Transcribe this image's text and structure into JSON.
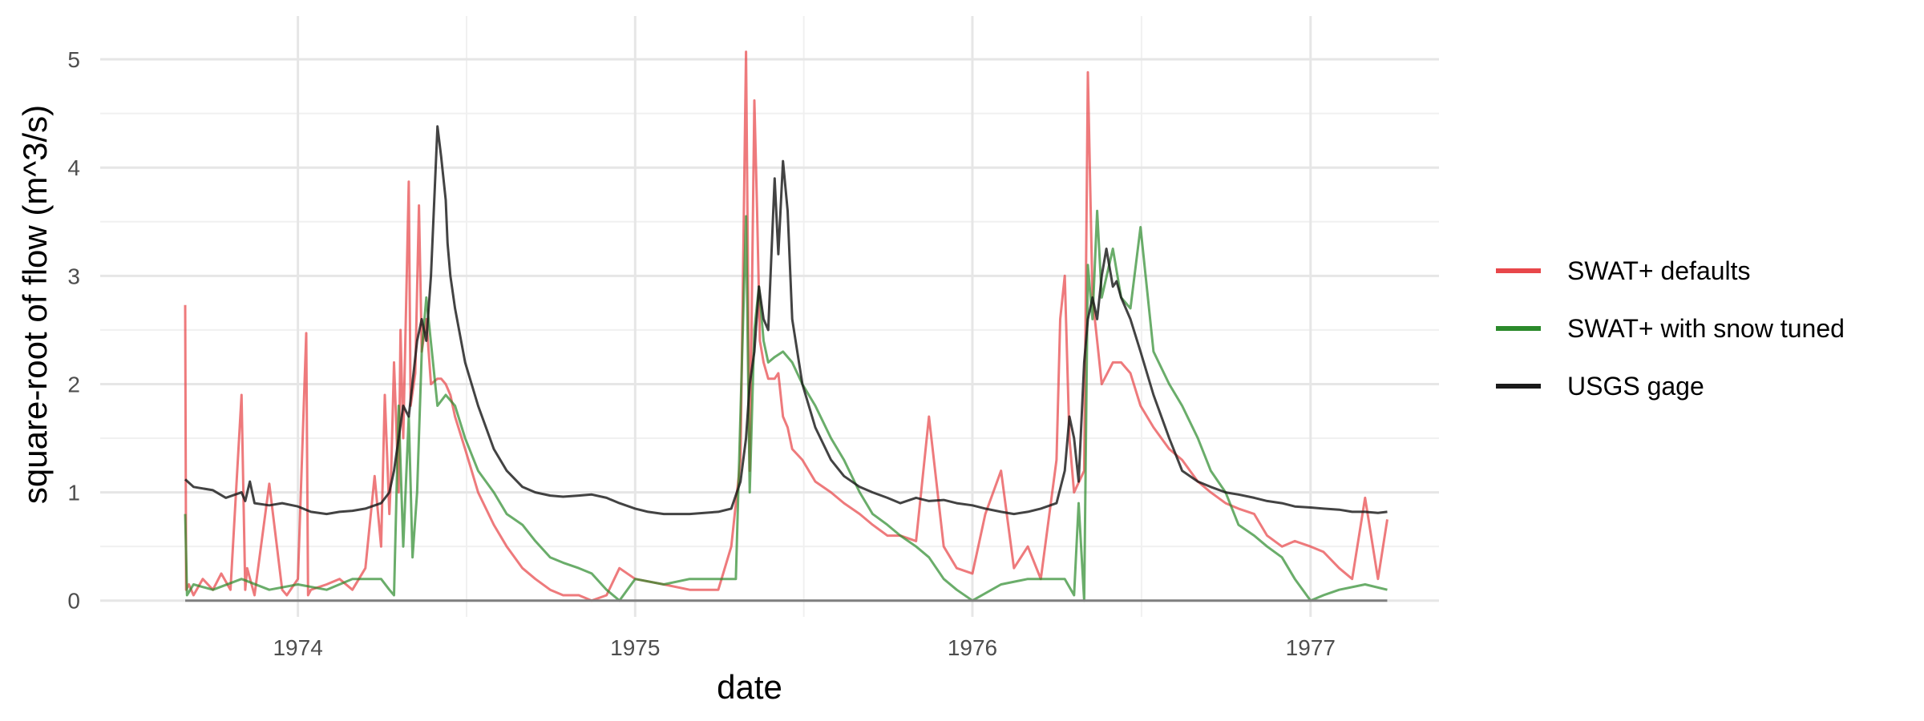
{
  "chart_data": {
    "type": "line",
    "title": "",
    "xlabel": "date",
    "ylabel": "square-root of flow (m^3/s)",
    "xlim": [
      "1973-06-01",
      "1977-05-20"
    ],
    "ylim": [
      -0.15,
      5.4
    ],
    "x_ticks": [
      "1974-01-01",
      "1975-01-01",
      "1976-01-01",
      "1977-01-01"
    ],
    "x_tick_labels": [
      "1974",
      "1975",
      "1976",
      "1977"
    ],
    "y_ticks": [
      0,
      1,
      2,
      3,
      4,
      5
    ],
    "y_tick_labels": [
      "0",
      "1",
      "2",
      "3",
      "4",
      "5"
    ],
    "grid": true,
    "legend_position": "right",
    "series": [
      {
        "name": "SWAT+ defaults",
        "color": "#e8474a",
        "x": [
          "1973-09-01",
          "1973-09-02",
          "1973-09-05",
          "1973-09-10",
          "1973-09-20",
          "1973-10-01",
          "1973-10-10",
          "1973-10-20",
          "1973-11-01",
          "1973-11-05",
          "1973-11-07",
          "1973-11-15",
          "1973-12-01",
          "1973-12-15",
          "1973-12-20",
          "1974-01-01",
          "1974-01-10",
          "1974-01-12",
          "1974-01-15",
          "1974-02-01",
          "1974-02-15",
          "1974-03-01",
          "1974-03-15",
          "1974-03-25",
          "1974-04-01",
          "1974-04-05",
          "1974-04-10",
          "1974-04-12",
          "1974-04-15",
          "1974-04-20",
          "1974-04-22",
          "1974-04-25",
          "1974-05-01",
          "1974-05-03",
          "1974-05-08",
          "1974-05-12",
          "1974-05-15",
          "1974-05-20",
          "1974-05-25",
          "1974-06-01",
          "1974-06-05",
          "1974-06-10",
          "1974-06-15",
          "1974-06-20",
          "1974-07-01",
          "1974-07-15",
          "1974-08-01",
          "1974-08-15",
          "1974-09-01",
          "1974-09-15",
          "1974-10-01",
          "1974-10-15",
          "1974-11-01",
          "1974-11-15",
          "1974-12-01",
          "1974-12-15",
          "1975-01-01",
          "1975-02-01",
          "1975-03-01",
          "1975-04-01",
          "1975-04-15",
          "1975-04-25",
          "1975-05-01",
          "1975-05-05",
          "1975-05-10",
          "1975-05-13",
          "1975-05-16",
          "1975-05-20",
          "1975-05-25",
          "1975-06-01",
          "1975-06-05",
          "1975-06-10",
          "1975-06-15",
          "1975-06-20",
          "1975-07-01",
          "1975-07-15",
          "1975-08-01",
          "1975-08-15",
          "1975-09-01",
          "1975-09-15",
          "1975-10-01",
          "1975-10-15",
          "1975-11-01",
          "1975-11-15",
          "1975-12-01",
          "1975-12-15",
          "1976-01-01",
          "1976-01-15",
          "1976-02-01",
          "1976-02-15",
          "1976-03-01",
          "1976-03-15",
          "1976-04-01",
          "1976-04-05",
          "1976-04-10",
          "1976-04-15",
          "1976-04-20",
          "1976-05-01",
          "1976-05-05",
          "1976-05-10",
          "1976-05-15",
          "1976-05-20",
          "1976-06-01",
          "1976-06-10",
          "1976-06-20",
          "1976-07-01",
          "1976-07-15",
          "1976-08-01",
          "1976-08-15",
          "1976-09-01",
          "1976-09-15",
          "1976-10-01",
          "1976-10-15",
          "1976-11-01",
          "1976-11-15",
          "1976-12-01",
          "1976-12-15",
          "1977-01-01",
          "1977-01-15",
          "1977-02-01",
          "1977-02-15",
          "1977-03-01",
          "1977-03-15",
          "1977-03-25"
        ],
        "values": [
          2.73,
          0.1,
          0.15,
          0.05,
          0.2,
          0.1,
          0.25,
          0.1,
          1.9,
          0.1,
          0.3,
          0.05,
          1.08,
          0.1,
          0.05,
          0.2,
          2.47,
          0.05,
          0.1,
          0.15,
          0.2,
          0.1,
          0.3,
          1.15,
          0.5,
          1.9,
          0.8,
          1.2,
          2.2,
          1.0,
          2.5,
          1.5,
          3.87,
          1.8,
          2.1,
          3.65,
          2.3,
          2.6,
          2.0,
          2.05,
          2.05,
          2.0,
          1.9,
          1.7,
          1.4,
          1.0,
          0.7,
          0.5,
          0.3,
          0.2,
          0.1,
          0.05,
          0.05,
          0.0,
          0.05,
          0.3,
          0.2,
          0.15,
          0.1,
          0.1,
          0.5,
          1.3,
          5.07,
          1.2,
          4.62,
          3.6,
          2.4,
          2.2,
          2.05,
          2.05,
          2.1,
          1.7,
          1.6,
          1.4,
          1.3,
          1.1,
          1.0,
          0.9,
          0.8,
          0.7,
          0.6,
          0.6,
          0.55,
          1.7,
          0.5,
          0.3,
          0.25,
          0.8,
          1.2,
          0.3,
          0.5,
          0.2,
          1.3,
          2.6,
          3.0,
          1.5,
          1.0,
          1.2,
          4.88,
          2.8,
          2.4,
          2.0,
          2.2,
          2.2,
          2.1,
          1.8,
          1.6,
          1.4,
          1.3,
          1.1,
          1.0,
          0.9,
          0.85,
          0.8,
          0.6,
          0.5,
          0.55,
          0.5,
          0.45,
          0.3,
          0.2,
          0.95,
          0.2,
          0.75
        ]
      },
      {
        "name": "SWAT+ with snow tuned",
        "color": "#2b8a2b",
        "x": [
          "1973-09-01",
          "1973-09-03",
          "1973-09-10",
          "1973-10-01",
          "1973-11-01",
          "1973-12-01",
          "1974-01-01",
          "1974-02-01",
          "1974-03-01",
          "1974-04-01",
          "1974-04-10",
          "1974-04-15",
          "1974-04-20",
          "1974-04-25",
          "1974-05-01",
          "1974-05-05",
          "1974-05-10",
          "1974-05-15",
          "1974-05-20",
          "1974-06-01",
          "1974-06-10",
          "1974-06-20",
          "1974-07-01",
          "1974-07-15",
          "1974-08-01",
          "1974-08-15",
          "1974-09-01",
          "1974-09-15",
          "1974-10-01",
          "1974-10-15",
          "1974-11-01",
          "1974-11-15",
          "1974-12-01",
          "1974-12-15",
          "1975-01-01",
          "1975-02-01",
          "1975-03-01",
          "1975-04-01",
          "1975-04-20",
          "1975-05-01",
          "1975-05-05",
          "1975-05-10",
          "1975-05-15",
          "1975-05-20",
          "1975-05-25",
          "1975-06-01",
          "1975-06-10",
          "1975-06-20",
          "1975-07-01",
          "1975-07-15",
          "1975-08-01",
          "1975-08-15",
          "1975-09-01",
          "1975-09-15",
          "1975-10-01",
          "1975-10-15",
          "1975-11-01",
          "1975-11-15",
          "1975-12-01",
          "1975-12-15",
          "1976-01-01",
          "1976-02-01",
          "1976-03-01",
          "1976-04-01",
          "1976-04-10",
          "1976-04-20",
          "1976-04-25",
          "1976-05-01",
          "1976-05-05",
          "1976-05-10",
          "1976-05-15",
          "1976-05-20",
          "1976-06-01",
          "1976-06-10",
          "1976-06-20",
          "1976-07-01",
          "1976-07-15",
          "1976-08-01",
          "1976-08-15",
          "1976-09-01",
          "1976-09-15",
          "1976-10-01",
          "1976-10-15",
          "1976-11-01",
          "1976-11-15",
          "1976-12-01",
          "1976-12-15",
          "1977-01-01",
          "1977-01-15",
          "1977-02-01",
          "1977-03-01",
          "1977-03-25"
        ],
        "values": [
          0.8,
          0.05,
          0.15,
          0.1,
          0.2,
          0.1,
          0.15,
          0.1,
          0.2,
          0.2,
          0.1,
          0.05,
          1.8,
          0.5,
          1.7,
          0.4,
          1.0,
          2.3,
          2.8,
          1.8,
          1.9,
          1.8,
          1.5,
          1.2,
          1.0,
          0.8,
          0.7,
          0.55,
          0.4,
          0.35,
          0.3,
          0.25,
          0.1,
          0.0,
          0.2,
          0.15,
          0.2,
          0.2,
          0.2,
          3.55,
          1.0,
          2.5,
          2.9,
          2.4,
          2.2,
          2.25,
          2.3,
          2.2,
          2.0,
          1.8,
          1.5,
          1.3,
          1.0,
          0.8,
          0.7,
          0.6,
          0.5,
          0.4,
          0.2,
          0.1,
          0.0,
          0.15,
          0.2,
          0.2,
          0.2,
          0.05,
          0.9,
          0.0,
          3.1,
          2.6,
          3.6,
          2.8,
          3.25,
          2.8,
          2.7,
          3.45,
          2.3,
          2.0,
          1.8,
          1.5,
          1.2,
          1.0,
          0.7,
          0.6,
          0.5,
          0.4,
          0.2,
          0.0,
          0.05,
          0.1,
          0.15,
          0.1
        ]
      },
      {
        "name": "USGS gage",
        "color": "#1a1a1a",
        "x": [
          "1973-09-01",
          "1973-09-10",
          "1973-10-01",
          "1973-10-15",
          "1973-11-01",
          "1973-11-05",
          "1973-11-10",
          "1973-11-15",
          "1973-12-01",
          "1973-12-15",
          "1974-01-01",
          "1974-01-15",
          "1974-02-01",
          "1974-02-15",
          "1974-03-01",
          "1974-03-15",
          "1974-04-01",
          "1974-04-10",
          "1974-04-15",
          "1974-04-20",
          "1974-04-25",
          "1974-05-01",
          "1974-05-10",
          "1974-05-15",
          "1974-05-20",
          "1974-05-25",
          "1974-06-01",
          "1974-06-05",
          "1974-06-10",
          "1974-06-12",
          "1974-06-15",
          "1974-06-20",
          "1974-07-01",
          "1974-07-15",
          "1974-08-01",
          "1974-08-15",
          "1974-09-01",
          "1974-09-15",
          "1974-10-01",
          "1974-10-15",
          "1974-11-01",
          "1974-11-15",
          "1974-12-01",
          "1974-12-15",
          "1975-01-01",
          "1975-01-15",
          "1975-02-01",
          "1975-03-01",
          "1975-04-01",
          "1975-04-15",
          "1975-04-25",
          "1975-05-01",
          "1975-05-05",
          "1975-05-10",
          "1975-05-15",
          "1975-05-20",
          "1975-05-25",
          "1975-06-01",
          "1975-06-05",
          "1975-06-10",
          "1975-06-15",
          "1975-06-20",
          "1975-07-01",
          "1975-07-15",
          "1975-08-01",
          "1975-08-15",
          "1975-09-01",
          "1975-09-15",
          "1975-10-01",
          "1975-10-15",
          "1975-11-01",
          "1975-11-15",
          "1975-12-01",
          "1975-12-15",
          "1976-01-01",
          "1976-01-15",
          "1976-02-01",
          "1976-02-15",
          "1976-03-01",
          "1976-03-15",
          "1976-04-01",
          "1976-04-10",
          "1976-04-15",
          "1976-04-20",
          "1976-04-25",
          "1976-05-01",
          "1976-05-05",
          "1976-05-10",
          "1976-05-15",
          "1976-05-20",
          "1976-05-25",
          "1976-06-01",
          "1976-06-05",
          "1976-06-10",
          "1976-06-20",
          "1976-07-01",
          "1976-07-15",
          "1976-08-01",
          "1976-08-15",
          "1976-09-01",
          "1976-09-15",
          "1976-10-01",
          "1976-10-15",
          "1976-11-01",
          "1976-11-15",
          "1976-12-01",
          "1976-12-15",
          "1977-01-01",
          "1977-01-15",
          "1977-02-01",
          "1977-02-15",
          "1977-03-01",
          "1977-03-15",
          "1977-03-25"
        ],
        "values": [
          1.12,
          1.05,
          1.02,
          0.95,
          1.0,
          0.92,
          1.1,
          0.9,
          0.88,
          0.9,
          0.87,
          0.82,
          0.8,
          0.82,
          0.83,
          0.85,
          0.9,
          1.0,
          1.2,
          1.5,
          1.8,
          1.7,
          2.4,
          2.6,
          2.4,
          3.0,
          4.38,
          4.1,
          3.7,
          3.3,
          3.0,
          2.7,
          2.2,
          1.8,
          1.4,
          1.2,
          1.05,
          1.0,
          0.97,
          0.96,
          0.97,
          0.98,
          0.95,
          0.9,
          0.85,
          0.82,
          0.8,
          0.8,
          0.82,
          0.85,
          1.1,
          1.5,
          2.0,
          2.3,
          2.9,
          2.6,
          2.5,
          3.9,
          3.2,
          4.06,
          3.6,
          2.6,
          2.0,
          1.6,
          1.3,
          1.15,
          1.05,
          1.0,
          0.95,
          0.9,
          0.95,
          0.92,
          0.93,
          0.9,
          0.88,
          0.85,
          0.82,
          0.8,
          0.82,
          0.85,
          0.9,
          1.2,
          1.7,
          1.5,
          1.1,
          2.2,
          2.6,
          2.8,
          2.6,
          3.0,
          3.25,
          2.9,
          2.95,
          2.8,
          2.6,
          2.3,
          1.9,
          1.5,
          1.2,
          1.1,
          1.05,
          1.0,
          0.98,
          0.95,
          0.92,
          0.9,
          0.87,
          0.86,
          0.85,
          0.84,
          0.82,
          0.82,
          0.81,
          0.82
        ]
      }
    ]
  }
}
